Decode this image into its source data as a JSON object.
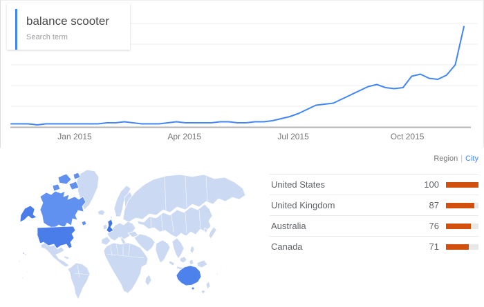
{
  "search_card": {
    "title": "balance scooter",
    "subtitle": "Search term",
    "accent_color": "#4285f4"
  },
  "chart_data": [
    {
      "type": "line",
      "series_name": "balance scooter",
      "x_unit": "week",
      "x_tick_labels": [
        "Jan 2015",
        "Apr 2015",
        "Jul 2015",
        "Oct 2015"
      ],
      "x_tick_weeks": [
        7.3,
        19.9,
        32.4,
        45.5
      ],
      "values": [
        3,
        3,
        3,
        2,
        3,
        3,
        3,
        3,
        3,
        3,
        3,
        4,
        4,
        5,
        4,
        3,
        3,
        3,
        4,
        5,
        4,
        4,
        4,
        4,
        5,
        5,
        4,
        4,
        5,
        5,
        6,
        8,
        10,
        13,
        17,
        21,
        22,
        23,
        27,
        31,
        35,
        39,
        41,
        38,
        37,
        38,
        49,
        51,
        47,
        46,
        50,
        60,
        97
      ],
      "ylim": [
        0,
        100
      ],
      "grid_values": [
        0,
        20,
        40,
        60,
        80,
        100
      ],
      "grid_color": "#ececec",
      "axis_color": "#b3b3b3",
      "line_color": "#4285f4"
    },
    {
      "type": "bar",
      "categories": [
        "United States",
        "United Kingdom",
        "Australia",
        "Canada"
      ],
      "values": [
        100,
        87,
        76,
        71
      ],
      "max": 100,
      "bar_color": "#d2500e",
      "bar_track_color": "#e8e8e8",
      "legend_position": "right"
    }
  ],
  "regions_header": {
    "region": "Region",
    "divider": "|",
    "city": "City",
    "city_color": "#4285f4"
  },
  "map": {
    "highlighted": [
      "United States",
      "United Kingdom",
      "Australia",
      "Canada"
    ],
    "colors": {
      "base": "#cbd9f2",
      "border": "#ffffff",
      "united_states": "#4a7dea",
      "canada": "#6090f0",
      "united_kingdom": "#3f74e6",
      "australia": "#4d82ec"
    }
  }
}
